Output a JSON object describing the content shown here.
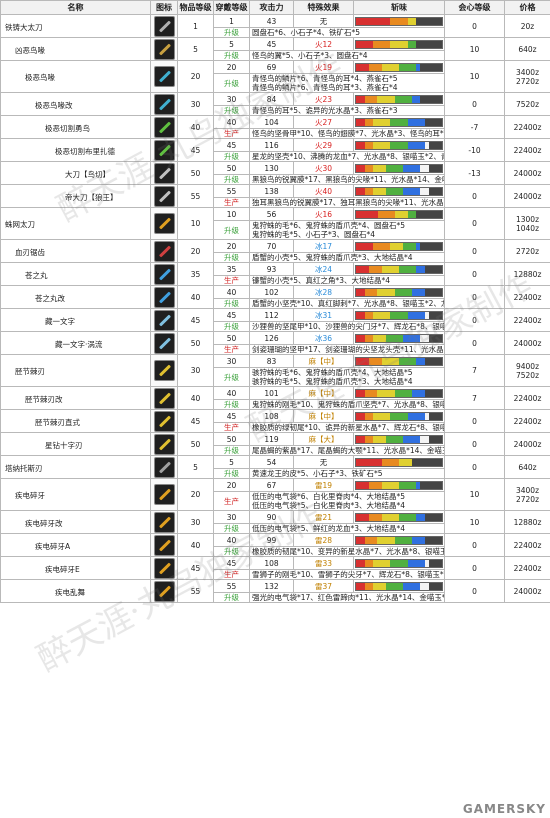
{
  "headers": {
    "name": "名称",
    "icon": "图标",
    "rarity": "物品等级",
    "slots": "穿戴等级",
    "attack": "攻击力",
    "special": "特殊效果",
    "sharpness": "斩味",
    "affinity": "会心等级",
    "price": "价格"
  },
  "labels": {
    "make": "生产",
    "upgrade": "升级"
  },
  "weapons": [
    {
      "name": "铁铸大太刀",
      "rarity": "1",
      "slots": "1",
      "rows": [
        {
          "label": "",
          "attack": "43",
          "special": "无",
          "special_elem": "",
          "affinity": "0",
          "price": "20z",
          "mats": "圆盘石*6、小石子*4、铁矿石*5",
          "sharp": [
            [
              "r",
              40
            ],
            [
              "o",
              20
            ],
            [
              "y",
              10
            ]
          ]
        }
      ]
    },
    {
      "name": "凶恶鸟喙",
      "rarity": "5",
      "slots": "5",
      "rows": [
        {
          "label": "升级",
          "attack": "45",
          "special": "火12",
          "special_elem": "fire",
          "affinity": "10",
          "price": "640z",
          "mats": "怪鸟的翼*5、小石子*3、圆盘石*4",
          "sharp": [
            [
              "r",
              20
            ],
            [
              "o",
              20
            ],
            [
              "y",
              20
            ],
            [
              "g",
              10
            ]
          ]
        }
      ]
    },
    {
      "name": "极恶鸟喙",
      "rarity": "20",
      "slots": "20",
      "rows": [
        {
          "label": "升级",
          "attack": "69",
          "special": "火19",
          "special_elem": "fire",
          "affinity": "10",
          "price": "3400z\n2720z",
          "mats": "青怪鸟的鳞片*6、青怪鸟的耳*4、燕雀石*5\n青怪鸟的鳞片*6、青怪鸟的耳*3、燕雀石*4",
          "sharp": [
            [
              "r",
              15
            ],
            [
              "o",
              15
            ],
            [
              "y",
              20
            ],
            [
              "g",
              20
            ],
            [
              "b",
              5
            ]
          ]
        }
      ]
    },
    {
      "name": "极恶鸟喙改",
      "rarity": "30",
      "slots": "30",
      "rows": [
        {
          "label": "",
          "attack": "84",
          "special": "火23",
          "special_elem": "fire",
          "affinity": "0",
          "price": "7520z",
          "mats": "青怪鸟的耳*5、诡异的光水晶*3、燕雀石*3",
          "sharp": [
            [
              "r",
              10
            ],
            [
              "o",
              15
            ],
            [
              "y",
              20
            ],
            [
              "g",
              20
            ],
            [
              "b",
              10
            ]
          ]
        }
      ]
    },
    {
      "name": "极恶切割勇鸟",
      "rarity": "40",
      "slots": "40",
      "rows": [
        {
          "label": "",
          "attack": "104",
          "special": "火27",
          "special_elem": "fire",
          "affinity": "-7",
          "price": "22400z",
          "mats": "怪鸟的坚骨甲*10、怪鸟的翅膜*7、光水晶*3、怪鸟的耳*7",
          "sharp": [
            [
              "r",
              10
            ],
            [
              "o",
              10
            ],
            [
              "y",
              20
            ],
            [
              "g",
              20
            ],
            [
              "b",
              20
            ]
          ]
        }
      ]
    },
    {
      "name": "极恶切割布里扎德",
      "rarity": "45",
      "slots": "45",
      "rows": [
        {
          "label": "",
          "attack": "116",
          "special": "火29",
          "special_elem": "fire",
          "affinity": "-10",
          "price": "22400z",
          "mats": "星龙的坚壳*10、沸腾的龙血*7、光水晶*8、银喵玉*2、青怪鸟的耳*4",
          "sharp": [
            [
              "r",
              10
            ],
            [
              "o",
              10
            ],
            [
              "y",
              20
            ],
            [
              "g",
              20
            ],
            [
              "b",
              20
            ],
            [
              "w",
              5
            ]
          ]
        }
      ]
    },
    {
      "name": "大刀【鸟切】",
      "rarity": "50",
      "slots": "50",
      "rows": [
        {
          "label": "",
          "attack": "130",
          "special": "火30",
          "special_elem": "fire",
          "affinity": "-13",
          "price": "24000z",
          "mats": "黑狼鸟的锐翼膜*17、黑狼鸟的尖喙*11、光水晶*14、金喵玉*3",
          "sharp": [
            [
              "r",
              10
            ],
            [
              "o",
              10
            ],
            [
              "y",
              15
            ],
            [
              "g",
              20
            ],
            [
              "b",
              20
            ],
            [
              "w",
              10
            ]
          ]
        }
      ]
    },
    {
      "name": "帝大刀【狼王】",
      "rarity": "55",
      "slots": "55",
      "rows": [
        {
          "label": "",
          "attack": "138",
          "special": "火40",
          "special_elem": "fire",
          "affinity": "0",
          "price": "24000z",
          "mats": "独耳黑狼鸟的锐翼膜*17、独耳黑狼鸟的尖喙*11、光水晶*14、金喵玉*4",
          "sharp": [
            [
              "r",
              10
            ],
            [
              "o",
              10
            ],
            [
              "y",
              15
            ],
            [
              "g",
              20
            ],
            [
              "b",
              20
            ],
            [
              "w",
              10
            ]
          ]
        }
      ]
    },
    {
      "name": "蛛网太刀",
      "rarity": "10",
      "slots": "10",
      "rows": [
        {
          "label": "",
          "attack": "56",
          "special": "火16",
          "special_elem": "fire",
          "affinity": "0",
          "price": "1300z\n1040z",
          "mats": "鬼狩蛛的毛*6、鬼狩蛛的盾爪壳*4、圆盘石*5\n鬼狩蛛的毛*5、小石子*3、圆盘石*4",
          "sharp": [
            [
              "r",
              25
            ],
            [
              "o",
              20
            ],
            [
              "y",
              15
            ],
            [
              "g",
              10
            ]
          ]
        }
      ]
    },
    {
      "name": "血刃锯齿",
      "rarity": "20",
      "slots": "20",
      "rows": [
        {
          "label": "",
          "attack": "70",
          "special": "冰17",
          "special_elem": "ice",
          "affinity": "0",
          "price": "2720z",
          "mats": "盾蟹的小壳*5、鬼狩蛛的盾爪壳*3、大地结晶*4",
          "sharp": [
            [
              "r",
              20
            ],
            [
              "o",
              20
            ],
            [
              "y",
              15
            ],
            [
              "g",
              15
            ],
            [
              "b",
              5
            ]
          ]
        }
      ]
    },
    {
      "name": "苍之丸",
      "rarity": "35",
      "slots": "35",
      "rows": [
        {
          "label": "",
          "attack": "93",
          "special": "冰24",
          "special_elem": "ice",
          "affinity": "0",
          "price": "12880z",
          "mats": "镰蟹的小壳*5、真红之角*3、大地结晶*4",
          "sharp": [
            [
              "r",
              15
            ],
            [
              "o",
              15
            ],
            [
              "y",
              20
            ],
            [
              "g",
              20
            ],
            [
              "b",
              10
            ]
          ]
        }
      ]
    },
    {
      "name": "苍之丸改",
      "rarity": "40",
      "slots": "40",
      "rows": [
        {
          "label": "",
          "attack": "102",
          "special": "冰28",
          "special_elem": "ice",
          "affinity": "0",
          "price": "22400z",
          "mats": "盾蟹的小坚壳*10、真红脚刺*7、光水晶*8、银喵玉*2、龙头壳*4",
          "sharp": [
            [
              "r",
              10
            ],
            [
              "o",
              15
            ],
            [
              "y",
              20
            ],
            [
              "g",
              20
            ],
            [
              "b",
              15
            ]
          ]
        }
      ]
    },
    {
      "name": "藏一文字",
      "rarity": "45",
      "slots": "45",
      "rows": [
        {
          "label": "",
          "attack": "112",
          "special": "冰31",
          "special_elem": "ice",
          "affinity": "0",
          "price": "22400z",
          "mats": "沙狸兽的坚尾甲*10、沙狸兽的尖门牙*7、辉龙石*8、银喵玉*2、龙头壳*4",
          "sharp": [
            [
              "r",
              10
            ],
            [
              "o",
              10
            ],
            [
              "y",
              20
            ],
            [
              "g",
              20
            ],
            [
              "b",
              20
            ],
            [
              "w",
              5
            ]
          ]
        }
      ]
    },
    {
      "name": "藏一文字·涡流",
      "rarity": "50",
      "slots": "50",
      "rows": [
        {
          "label": "",
          "attack": "126",
          "special": "冰36",
          "special_elem": "ice",
          "affinity": "0",
          "price": "24000z",
          "mats": "剑姿珊瑚的坚甲*17、剑姿珊瑚的尖坚龙头壳*11、光水晶*14、金喵玉*3",
          "sharp": [
            [
              "r",
              10
            ],
            [
              "o",
              10
            ],
            [
              "y",
              15
            ],
            [
              "g",
              20
            ],
            [
              "b",
              20
            ],
            [
              "w",
              10
            ]
          ]
        }
      ]
    },
    {
      "name": "胫节棘刃",
      "rarity": "30",
      "slots": "30",
      "rows": [
        {
          "label": "",
          "attack": "83",
          "special": "麻【中】",
          "special_elem": "thunder",
          "affinity": "7",
          "price": "9400z\n7520z",
          "mats": "骇狩蛛的毛*6、鬼狩蛛的盾爪壳*4、大地结晶*5\n骇狩蛛的毛*5、鬼狩蛛的盾爪壳*3、大地结晶*4",
          "sharp": [
            [
              "r",
              15
            ],
            [
              "o",
              15
            ],
            [
              "y",
              20
            ],
            [
              "g",
              20
            ],
            [
              "b",
              10
            ]
          ]
        }
      ]
    },
    {
      "name": "胫节棘刃改",
      "rarity": "40",
      "slots": "40",
      "rows": [
        {
          "label": "",
          "attack": "101",
          "special": "麻【中】",
          "special_elem": "thunder",
          "affinity": "7",
          "price": "22400z",
          "mats": "鬼狩蛛的刚毛*10、鬼狩蛛的盾爪坚壳*7、光水晶*8、银喵玉*2、骇狩蛛的盾爪壳*4",
          "sharp": [
            [
              "r",
              10
            ],
            [
              "o",
              15
            ],
            [
              "y",
              20
            ],
            [
              "g",
              20
            ],
            [
              "b",
              15
            ]
          ]
        }
      ]
    },
    {
      "name": "胫节棘刃直式",
      "rarity": "45",
      "slots": "45",
      "rows": [
        {
          "label": "",
          "attack": "108",
          "special": "麻【中】",
          "special_elem": "thunder",
          "affinity": "0",
          "price": "22400z",
          "mats": "橡胶质的绿韧尾*10、诡异的新星水晶*7、辉龙石*8、银喵玉*2、骇狩蛛的盾爪壳*4",
          "sharp": [
            [
              "r",
              10
            ],
            [
              "o",
              10
            ],
            [
              "y",
              20
            ],
            [
              "g",
              20
            ],
            [
              "b",
              20
            ],
            [
              "w",
              5
            ]
          ]
        }
      ]
    },
    {
      "name": "星钻十字刃",
      "rarity": "50",
      "slots": "50",
      "rows": [
        {
          "label": "",
          "attack": "119",
          "special": "麻【大】",
          "special_elem": "thunder",
          "affinity": "0",
          "price": "24000z",
          "mats": "尾晶蝎的紫晶*17、尾晶蝎的大颚*11、光水晶*14、金喵玉*3",
          "sharp": [
            [
              "r",
              10
            ],
            [
              "o",
              10
            ],
            [
              "y",
              15
            ],
            [
              "g",
              20
            ],
            [
              "b",
              20
            ],
            [
              "w",
              10
            ]
          ]
        }
      ]
    },
    {
      "name": "塔纳托斯刃",
      "rarity": "5",
      "slots": "5",
      "rows": [
        {
          "label": "",
          "attack": "54",
          "special": "无",
          "special_elem": "",
          "affinity": "0",
          "price": "640z",
          "mats": "黄速龙王的皮*5、小石子*3、铁矿石*5",
          "sharp": [
            [
              "r",
              30
            ],
            [
              "o",
              20
            ],
            [
              "y",
              15
            ]
          ]
        }
      ]
    },
    {
      "name": "疾电碎牙",
      "rarity": "20",
      "slots": "20",
      "rows": [
        {
          "label": "",
          "attack": "67",
          "special": "雷19",
          "special_elem": "thunder",
          "affinity": "10",
          "price": "3400z\n2720z",
          "mats": "低压的电气袋*6、白化里脊肉*4、大地结晶*5\n低压的电气袋*5、白化里脊肉*3、大地结晶*4",
          "sharp": [
            [
              "r",
              15
            ],
            [
              "o",
              15
            ],
            [
              "y",
              20
            ],
            [
              "g",
              20
            ],
            [
              "b",
              5
            ]
          ]
        }
      ]
    },
    {
      "name": "疾电碎牙改",
      "rarity": "30",
      "slots": "30",
      "rows": [
        {
          "label": "",
          "attack": "90",
          "special": "雷21",
          "special_elem": "thunder",
          "affinity": "10",
          "price": "12880z",
          "mats": "低压的电气袋*5、鲜红的龙血*3、大地结晶*4",
          "sharp": [
            [
              "r",
              15
            ],
            [
              "o",
              15
            ],
            [
              "y",
              20
            ],
            [
              "g",
              20
            ],
            [
              "b",
              10
            ]
          ]
        }
      ]
    },
    {
      "name": "疾电碎牙A",
      "rarity": "40",
      "slots": "40",
      "rows": [
        {
          "label": "",
          "attack": "99",
          "special": "雷28",
          "special_elem": "thunder",
          "affinity": "0",
          "price": "22400z",
          "mats": "橡胶质的韧尾*10、变异的新星水晶*7、光水晶*8、银喵玉*2、白化里脊肉*4",
          "sharp": [
            [
              "r",
              10
            ],
            [
              "o",
              15
            ],
            [
              "y",
              20
            ],
            [
              "g",
              20
            ],
            [
              "b",
              15
            ]
          ]
        }
      ]
    },
    {
      "name": "疾电碎牙E",
      "rarity": "45",
      "slots": "45",
      "rows": [
        {
          "label": "",
          "attack": "108",
          "special": "雷33",
          "special_elem": "thunder",
          "affinity": "0",
          "price": "22400z",
          "mats": "雪狮子的刚毛*10、雪狮子的尖牙*7、辉龙石*8、银喵玉*2、白化里脊肉*4",
          "sharp": [
            [
              "r",
              10
            ],
            [
              "o",
              10
            ],
            [
              "y",
              20
            ],
            [
              "g",
              20
            ],
            [
              "b",
              20
            ],
            [
              "w",
              5
            ]
          ]
        }
      ]
    },
    {
      "name": "疾电乱舞",
      "rarity": "55",
      "slots": "55",
      "rows": [
        {
          "label": "",
          "attack": "132",
          "special": "雷37",
          "special_elem": "thunder",
          "affinity": "0",
          "price": "24000z",
          "mats": "强光的电气袋*17、红色雷蹄肉*11、光水晶*14、金喵玉*4",
          "sharp": [
            [
              "r",
              10
            ],
            [
              "o",
              10
            ],
            [
              "y",
              15
            ],
            [
              "g",
              20
            ],
            [
              "b",
              20
            ],
            [
              "w",
              10
            ]
          ]
        }
      ]
    }
  ],
  "watermark": "醉天涯·丸鸟独家制作",
  "logo": "GAMERSKY",
  "colors": {
    "fire": "#d82020",
    "ice": "#2a8bd8",
    "thunder": "#c08000",
    "make": "#d02020",
    "upgrade": "#3aa03a"
  }
}
